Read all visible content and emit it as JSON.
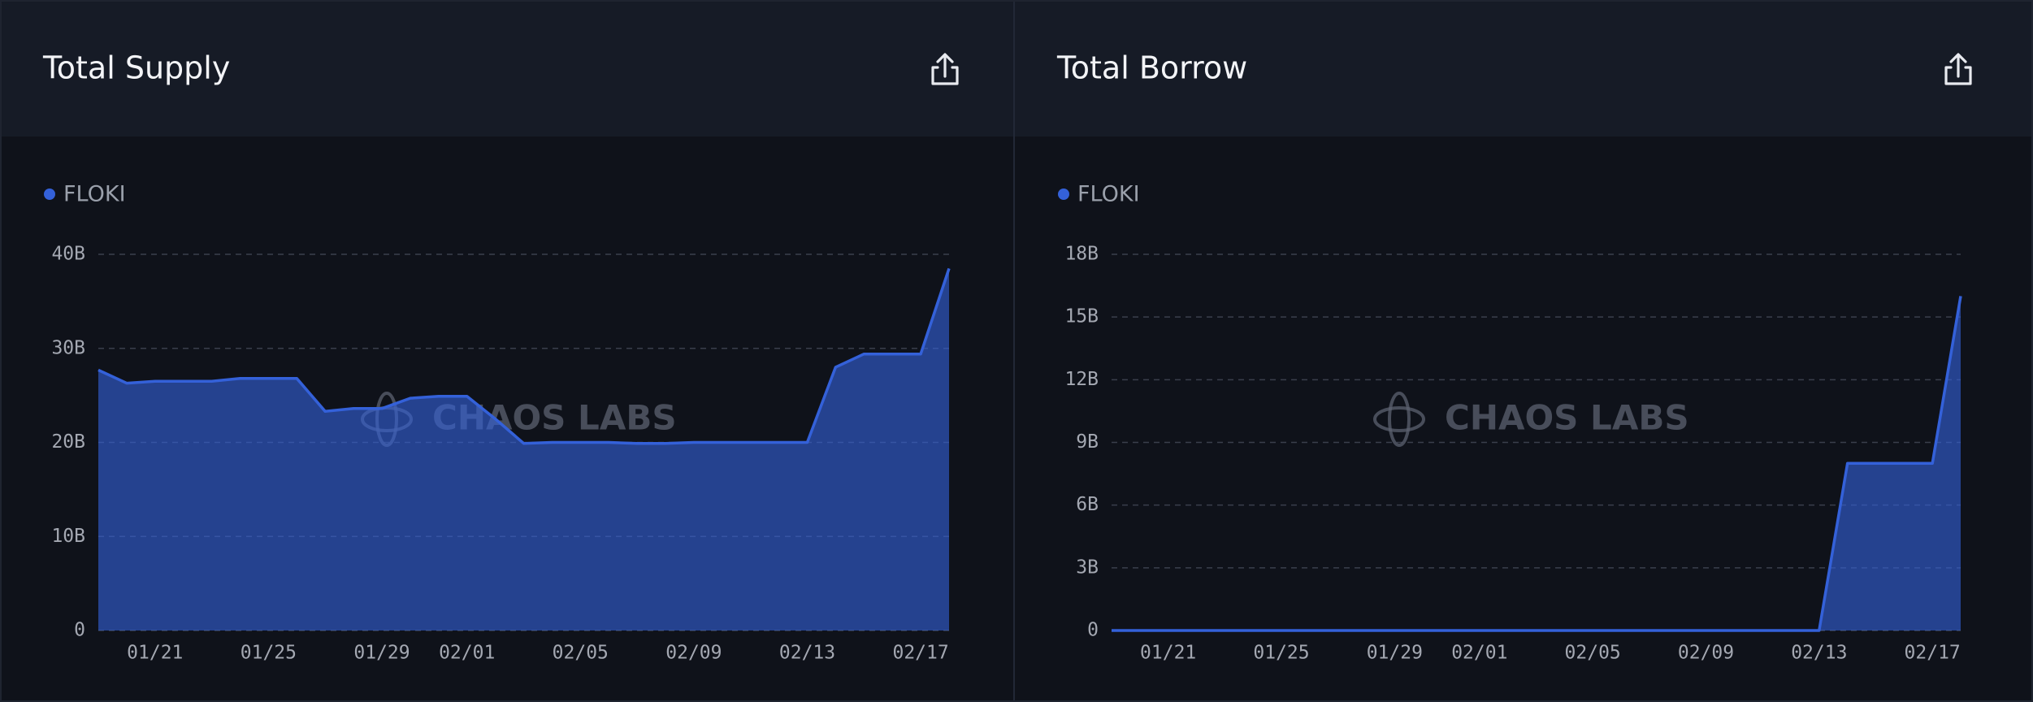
{
  "chart_data": [
    {
      "type": "area",
      "title": "Total Supply",
      "watermark": "CHAOS LABS",
      "x": [
        null,
        null,
        "01/21",
        null,
        null,
        null,
        "01/25",
        null,
        null,
        null,
        "01/29",
        null,
        null,
        "02/01",
        null,
        null,
        null,
        "02/05",
        null,
        null,
        null,
        "02/09",
        null,
        null,
        null,
        "02/13",
        null,
        null,
        null,
        "02/17",
        null
      ],
      "series": [
        {
          "name": "FLOKI",
          "color": "#3461d9",
          "values": [
            27.7,
            26.3,
            26.5,
            26.5,
            26.5,
            26.8,
            26.8,
            26.8,
            23.3,
            23.6,
            23.6,
            24.7,
            24.9,
            24.9,
            22.5,
            19.9,
            20.0,
            20.0,
            20.0,
            19.9,
            19.9,
            20.0,
            20.0,
            20.0,
            20.0,
            20.0,
            28.0,
            29.4,
            29.4,
            29.4,
            38.5
          ]
        }
      ],
      "ylim": [
        0,
        40
      ],
      "yticks": [
        0,
        {
          "value": 10,
          "label": "10B"
        },
        {
          "value": 20,
          "label": "20B"
        },
        {
          "value": 30,
          "label": "30B"
        },
        {
          "value": 40,
          "label": "40B"
        }
      ],
      "grid": true
    },
    {
      "type": "area",
      "title": "Total Borrow",
      "watermark": "CHAOS LABS",
      "x": [
        null,
        null,
        "01/21",
        null,
        null,
        null,
        "01/25",
        null,
        null,
        null,
        "01/29",
        null,
        null,
        "02/01",
        null,
        null,
        null,
        "02/05",
        null,
        null,
        null,
        "02/09",
        null,
        null,
        null,
        "02/13",
        null,
        null,
        null,
        "02/17",
        null
      ],
      "series": [
        {
          "name": "FLOKI",
          "color": "#3461d9",
          "values": [
            0,
            0,
            0,
            0,
            0,
            0,
            0,
            0,
            0,
            0,
            0,
            0,
            0,
            0,
            0,
            0,
            0,
            0,
            0,
            0,
            0,
            0,
            0,
            0,
            0,
            0,
            8.0,
            8.0,
            8.0,
            8.0,
            16.0
          ]
        }
      ],
      "ylim": [
        0,
        18
      ],
      "yticks": [
        0,
        {
          "value": 3,
          "label": "3B"
        },
        {
          "value": 6,
          "label": "6B"
        },
        {
          "value": 9,
          "label": "9B"
        },
        {
          "value": 12,
          "label": "12B"
        },
        {
          "value": 15,
          "label": "15B"
        },
        {
          "value": 18,
          "label": "18B"
        }
      ],
      "grid": true
    }
  ]
}
